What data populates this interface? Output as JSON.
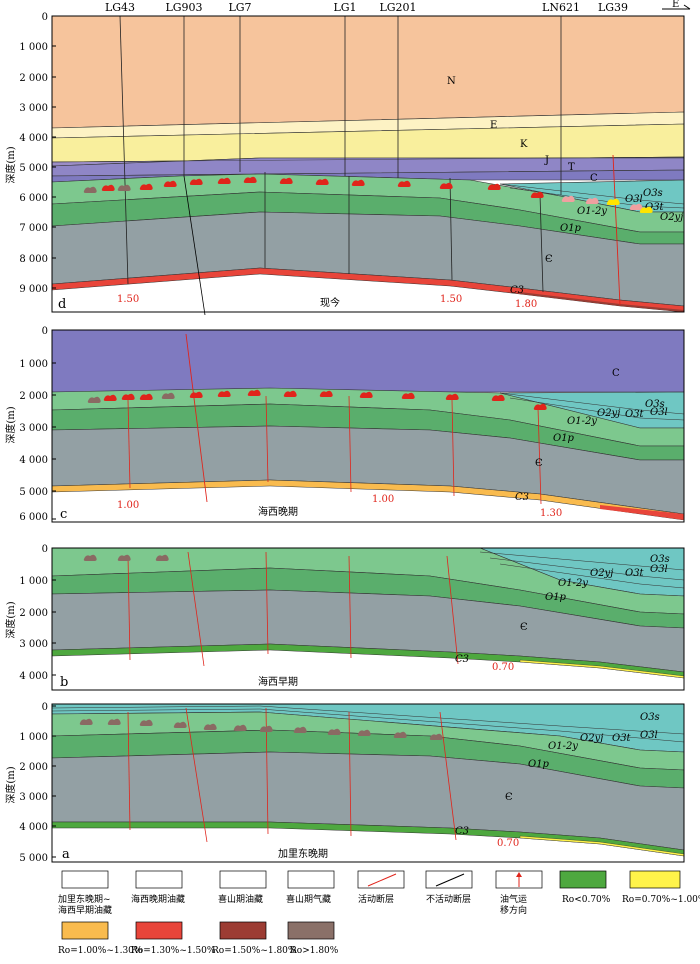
{
  "direction": "E",
  "wells": [
    "LG43",
    "LG903",
    "LG7",
    "LG1",
    "LG201",
    "LN621",
    "LG39"
  ],
  "depth_axis_label": "深度(m)",
  "panels": {
    "d": {
      "letter": "d",
      "era": "现今",
      "ticks": [
        "0",
        "1 000",
        "2 000",
        "3 000",
        "4 000",
        "5 000",
        "6 000",
        "7 000",
        "8 000",
        "9 000"
      ],
      "ro": [
        "1.50",
        "1.50",
        "1.80"
      ],
      "strata": [
        "N",
        "E",
        "K",
        "J",
        "T",
        "C",
        "O3s",
        "O3l",
        "O3t",
        "O2yj",
        "O1-2y",
        "O1p",
        "Є",
        "C3"
      ]
    },
    "c": {
      "letter": "c",
      "era": "海西晚期",
      "ticks": [
        "0",
        "1 000",
        "2 000",
        "3 000",
        "4 000",
        "5 000",
        "6 000"
      ],
      "ro": [
        "1.00",
        "1.00",
        "1.30"
      ],
      "strata": [
        "C",
        "O3s",
        "O3l",
        "O3t",
        "O2yj",
        "O1-2y",
        "O1p",
        "Є",
        "C3"
      ]
    },
    "b": {
      "letter": "b",
      "era": "海西早期",
      "ticks": [
        "0",
        "1 000",
        "2 000",
        "3 000",
        "4 000"
      ],
      "ro": [
        "0.70"
      ],
      "strata": [
        "O3s",
        "O3l",
        "O3t",
        "O2yj",
        "O1-2y",
        "O1p",
        "Є",
        "C3"
      ]
    },
    "a": {
      "letter": "a",
      "era": "加里东晚期",
      "ticks": [
        "0",
        "1 000",
        "2 000",
        "3 000",
        "4 000",
        "5 000"
      ],
      "ro": [
        "0.70"
      ],
      "strata": [
        "O3s",
        "O3l",
        "O3t",
        "O2yj",
        "O1-2y",
        "O1p",
        "Є",
        "C3"
      ]
    }
  },
  "legend": [
    {
      "key": "caledonian-hercynian-oil",
      "text": "加里东晚期~海西早期油藏"
    },
    {
      "key": "late-hercynian-oil",
      "text": "海西晚期油藏"
    },
    {
      "key": "himalayan-oil",
      "text": "喜山期油藏"
    },
    {
      "key": "himalayan-gas",
      "text": "喜山期气藏"
    },
    {
      "key": "active-fault",
      "text": "活动断层"
    },
    {
      "key": "inactive-fault",
      "text": "不活动断层"
    },
    {
      "key": "migration",
      "text": "油气运移方向"
    },
    {
      "key": "ro1",
      "text": "Ro<0.70%"
    },
    {
      "key": "ro2",
      "text": "Ro=0.70%~1.00%"
    },
    {
      "key": "ro3",
      "text": "Ro=1.00%~1.30%"
    },
    {
      "key": "ro4",
      "text": "Ro=1.30%~1.50%"
    },
    {
      "key": "ro5",
      "text": "Ro=1.50%~1.80%"
    },
    {
      "key": "ro6",
      "text": "Ro>1.80%"
    }
  ],
  "colors": {
    "N": "#f6c49c",
    "E": "#fdf2c4",
    "K": "#f9ef9d",
    "JT": "#9b8dc6",
    "C": "#7f7ac0",
    "O3": "#6fc7c3",
    "Oup": "#7dc88e",
    "Omid": "#5aae6c",
    "Cam": "#93a0a4",
    "oil_red": "#e0241b",
    "oil_brown": "#8a6a63",
    "oil_pink": "#f0a0a0",
    "gas_yellow": "#ffe400",
    "ro1": "#4ea83f",
    "ro2": "#fff34a",
    "ro3": "#f9bb4e",
    "ro4": "#e8453a",
    "ro5": "#9c3c33",
    "ro6": "#8a7068"
  }
}
